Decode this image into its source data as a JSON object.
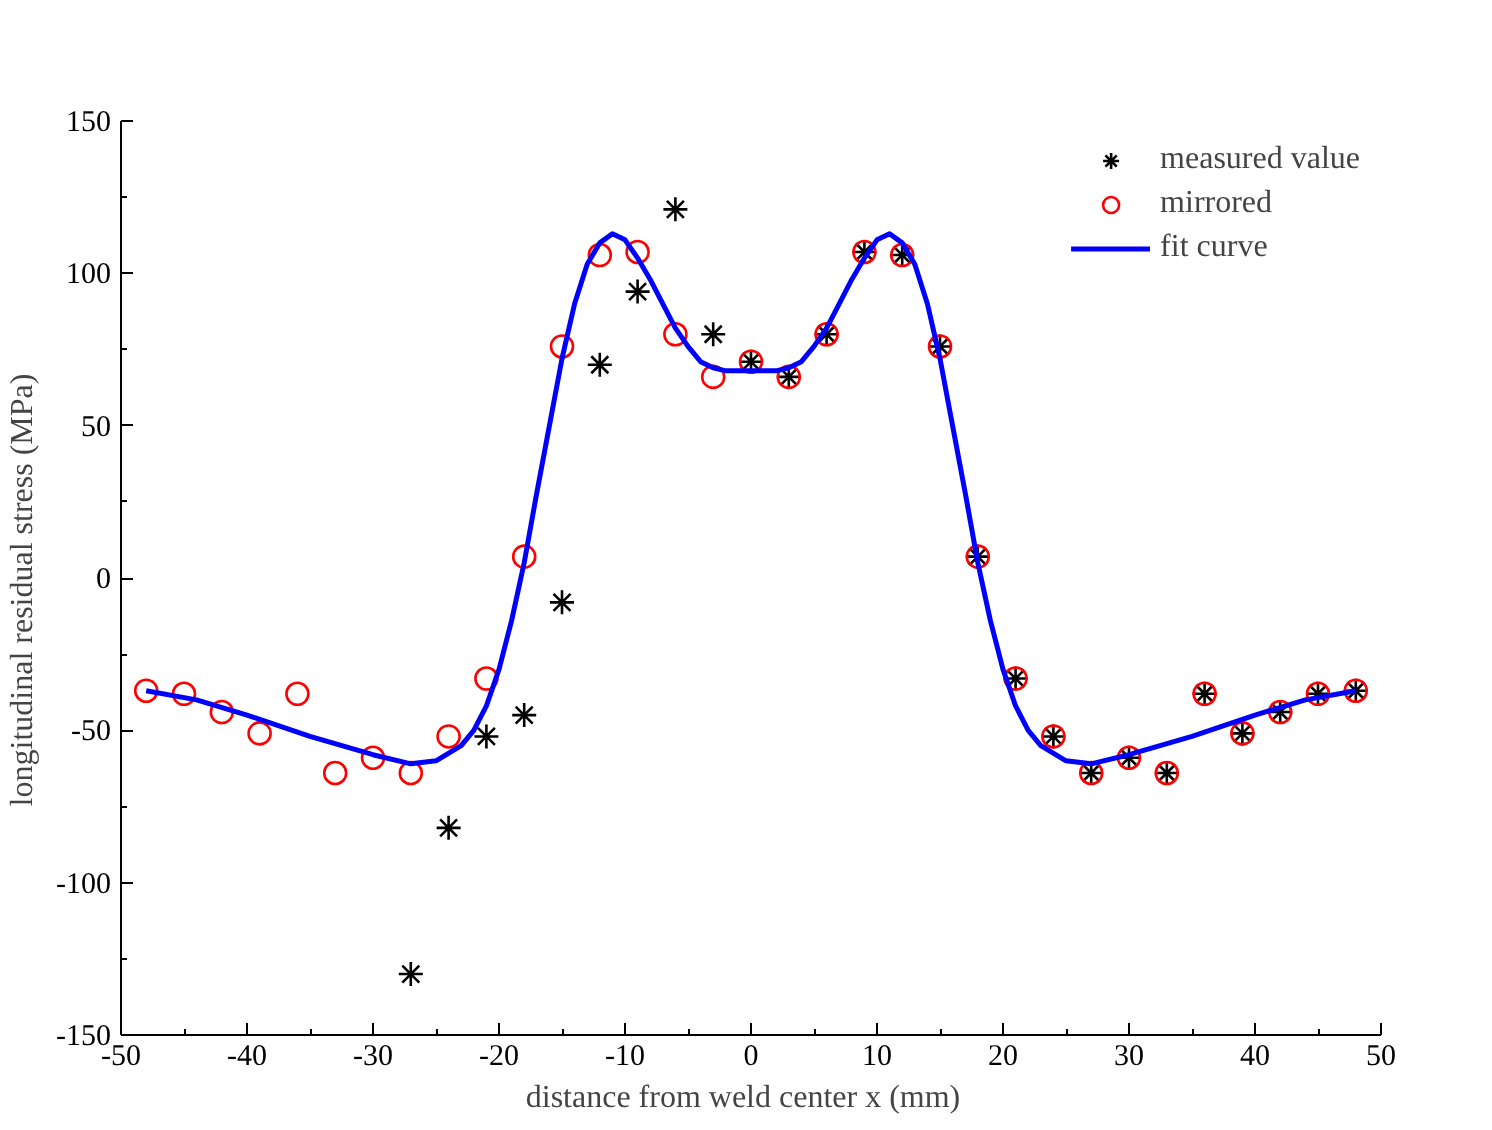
{
  "chart_data": {
    "type": "scatter",
    "xlabel": "distance from weld center  x  (mm)",
    "ylabel": "longitudinal residual stress    (MPa)",
    "xlim": [
      -50,
      50
    ],
    "xticks": [
      -50,
      -40,
      -30,
      -20,
      -10,
      0,
      10,
      20,
      30,
      40,
      50
    ],
    "ylim": [
      -150,
      150
    ],
    "yticks": [
      -150,
      -100,
      -50,
      0,
      50,
      100,
      150
    ],
    "grid": false,
    "legend": "top right",
    "series": [
      {
        "name": "measured value",
        "marker": "cross",
        "color": "#000000",
        "x": [
          -27,
          -24,
          -21,
          -18,
          -15,
          -12,
          -9,
          -6,
          -3,
          0,
          3,
          6,
          9,
          12,
          15,
          18,
          21,
          24,
          27,
          30,
          33,
          36,
          39,
          42,
          45,
          48
        ],
        "values": [
          -130,
          -82,
          -52,
          -45,
          -8,
          70,
          94,
          121,
          80,
          71,
          66,
          80,
          107,
          106,
          76,
          7,
          -33,
          -52,
          -64,
          -59,
          -64,
          -38,
          -51,
          -44,
          -38,
          -37
        ]
      },
      {
        "name": "mirrored",
        "marker": "circle",
        "color": "#ff0000",
        "x": [
          -48,
          -45,
          -42,
          -39,
          -36,
          -33,
          -30,
          -27,
          -24,
          -21,
          -18,
          -15,
          -12,
          -9,
          -6,
          -3,
          0,
          3,
          6,
          9,
          12,
          15,
          18,
          21,
          24,
          27,
          30,
          33,
          36,
          39,
          42,
          45,
          48
        ],
        "values": [
          -37,
          -38,
          -44,
          -51,
          -38,
          -64,
          -59,
          -64,
          -52,
          -33,
          7,
          76,
          106,
          107,
          80,
          66,
          71,
          66,
          80,
          107,
          106,
          76,
          7,
          -33,
          -52,
          -64,
          -59,
          -64,
          -38,
          -51,
          -44,
          -38,
          -37
        ]
      },
      {
        "name": "fit curve",
        "type": "line",
        "marker": "none",
        "line_style": "solid",
        "color": "#0000ff",
        "x": [
          -48,
          -44,
          -40,
          -35,
          -30,
          -27,
          -25,
          -23,
          -22,
          -21,
          -20,
          -19,
          -18,
          -17,
          -16,
          -15,
          -14,
          -13,
          -12,
          -11,
          -10,
          -9,
          -8,
          -7,
          -6,
          -5,
          -4,
          -3,
          -2,
          0,
          2,
          3,
          4,
          5,
          6,
          7,
          8,
          9,
          10,
          11,
          12,
          13,
          14,
          15,
          16,
          17,
          18,
          19,
          20,
          21,
          22,
          23,
          25,
          27,
          30,
          35,
          40,
          44,
          48
        ],
        "values": [
          -37,
          -40,
          -45,
          -52,
          -58,
          -61,
          -60,
          -55,
          -50,
          -42,
          -30,
          -14,
          5,
          28,
          50,
          72,
          90,
          103,
          110,
          113,
          111,
          105,
          98,
          90,
          82,
          76,
          71,
          69,
          68,
          68,
          68,
          69,
          71,
          76,
          82,
          90,
          98,
          105,
          111,
          113,
          110,
          103,
          90,
          72,
          50,
          28,
          5,
          -14,
          -30,
          -42,
          -50,
          -55,
          -60,
          -61,
          -58,
          -52,
          -45,
          -40,
          -37
        ]
      }
    ]
  }
}
